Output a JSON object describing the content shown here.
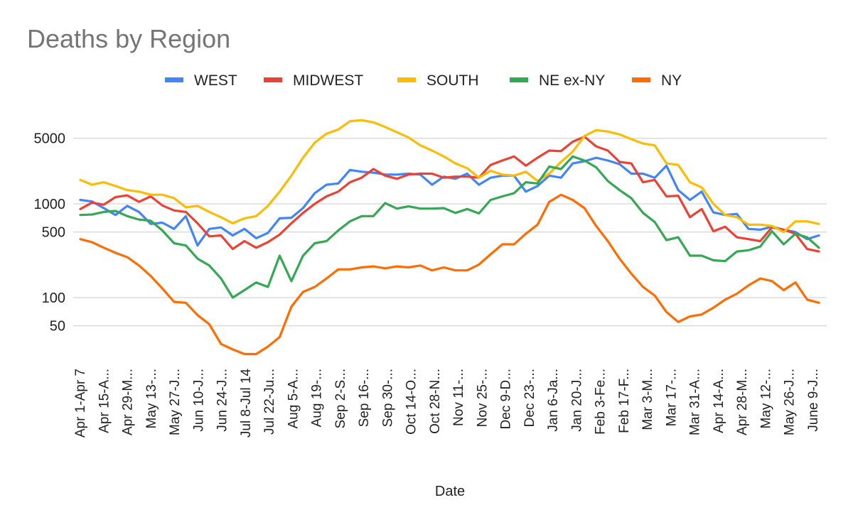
{
  "chart_data": {
    "type": "line",
    "title": "Deaths by Region",
    "xlabel": "Date",
    "ylabel": "",
    "yscale": "log",
    "ylim": [
      18,
      13000
    ],
    "yticks": [
      50,
      100,
      500,
      1000,
      5000
    ],
    "legend_position": "top",
    "grid": true,
    "x_tick_labels": [
      "Apr 1-Apr 7",
      "Apr 15-A...",
      "Apr 29-M...",
      "May 13-...",
      "May 27-J...",
      "Jun 10-J...",
      "Jun 24-J...",
      "Jul 8-Jul 14",
      "Jul 22-Ju...",
      "Aug 5-A...",
      "Aug 19-...",
      "Sep 2-S...",
      "Sep 16-...",
      "Sep 30-...",
      "Oct 14-O...",
      "Oct 28-N...",
      "Nov 11-...",
      "Nov 25-...",
      "Dec 9-D...",
      "Dec 23-...",
      "Jan 6-Ja...",
      "Jan 20-J...",
      "Feb 3-Fe...",
      "Feb 17-F...",
      "Mar 3-M...",
      "Mar 17-...",
      "Mar 31-A...",
      "Apr 14-A...",
      "Apr 28-M...",
      "May 12-...",
      "May 26-J...",
      "June 9-J..."
    ],
    "series": [
      {
        "name": "WEST",
        "color": "#4285f4",
        "values": [
          1100,
          1060,
          900,
          760,
          950,
          820,
          610,
          630,
          540,
          740,
          360,
          540,
          560,
          460,
          540,
          430,
          490,
          700,
          710,
          900,
          1300,
          1600,
          1650,
          2300,
          2200,
          2150,
          2050,
          2050,
          2100,
          2050,
          1600,
          1950,
          1850,
          2100,
          1600,
          1900,
          2000,
          2000,
          1350,
          1550,
          2000,
          1900,
          2700,
          2850,
          3100,
          2900,
          2650,
          2100,
          2100,
          1900,
          2550,
          1400,
          1100,
          1350,
          810,
          760,
          780,
          540,
          530,
          570,
          530,
          500,
          420,
          460
        ]
      },
      {
        "name": "MIDWEST",
        "color": "#ea4335",
        "values": [
          880,
          1030,
          980,
          1180,
          1230,
          1050,
          1200,
          960,
          850,
          820,
          620,
          450,
          460,
          330,
          400,
          340,
          390,
          470,
          620,
          800,
          1000,
          1200,
          1350,
          1700,
          1900,
          2350,
          2000,
          1850,
          2050,
          2100,
          2100,
          1900,
          1950,
          1950,
          1900,
          2600,
          2900,
          3200,
          2550,
          3100,
          3700,
          3650,
          4600,
          5200,
          4100,
          3700,
          2800,
          2700,
          1700,
          1800,
          1200,
          1220,
          720,
          880,
          510,
          570,
          440,
          420,
          400,
          560,
          530,
          480,
          330,
          310
        ]
      },
      {
        "name": "SOUTH",
        "color": "#fbbc04",
        "values": [
          1800,
          1600,
          1700,
          1550,
          1400,
          1350,
          1250,
          1250,
          1150,
          920,
          950,
          820,
          720,
          620,
          700,
          740,
          950,
          1350,
          2000,
          3100,
          4500,
          5600,
          6200,
          7600,
          7800,
          7400,
          6600,
          5800,
          5100,
          4200,
          3700,
          3200,
          2700,
          2400,
          1900,
          2250,
          2050,
          2000,
          2200,
          1750,
          2100,
          2800,
          3600,
          5300,
          6100,
          5900,
          5500,
          4900,
          4400,
          4200,
          2700,
          2600,
          1700,
          1500,
          1000,
          760,
          720,
          600,
          600,
          580,
          500,
          650,
          650,
          610
        ]
      },
      {
        "name": "NE ex-NY",
        "color": "#34a853",
        "values": [
          760,
          770,
          820,
          840,
          740,
          680,
          660,
          520,
          380,
          360,
          260,
          220,
          160,
          100,
          120,
          145,
          130,
          280,
          150,
          280,
          380,
          400,
          520,
          650,
          740,
          740,
          1020,
          890,
          940,
          890,
          890,
          900,
          800,
          880,
          790,
          1100,
          1200,
          1300,
          1700,
          1650,
          2500,
          2350,
          3200,
          2900,
          2450,
          1750,
          1400,
          1150,
          800,
          640,
          410,
          440,
          280,
          280,
          250,
          245,
          310,
          320,
          350,
          510,
          370,
          480,
          440,
          340
        ]
      },
      {
        "name": "NY",
        "color": "#ff6d01",
        "values": [
          420,
          390,
          340,
          300,
          270,
          220,
          170,
          125,
          90,
          88,
          65,
          52,
          32,
          28,
          25,
          25,
          30,
          38,
          80,
          115,
          130,
          160,
          200,
          200,
          210,
          215,
          205,
          215,
          210,
          220,
          195,
          210,
          195,
          195,
          225,
          290,
          370,
          370,
          480,
          600,
          1050,
          1250,
          1100,
          900,
          580,
          400,
          260,
          180,
          130,
          105,
          70,
          55,
          63,
          66,
          78,
          95,
          110,
          135,
          160,
          150,
          120,
          145,
          95,
          88
        ]
      }
    ]
  }
}
